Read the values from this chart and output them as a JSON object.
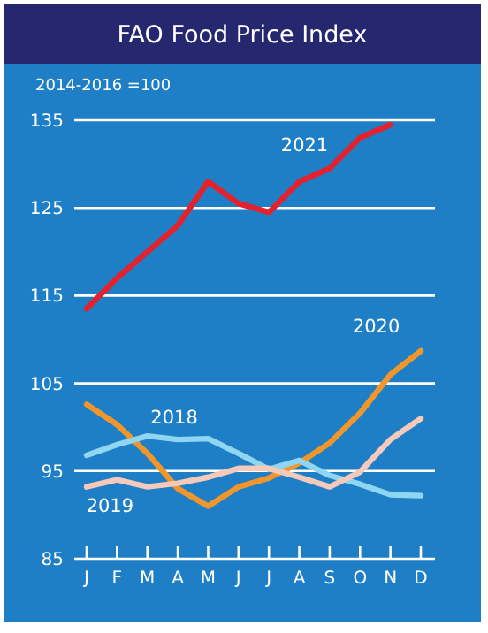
{
  "chart_data": {
    "type": "line",
    "title": "FAO Food Price Index",
    "ylabel": "2014-2016 =100",
    "categories": [
      "J",
      "F",
      "M",
      "A",
      "M",
      "J",
      "J",
      "A",
      "S",
      "O",
      "N",
      "D"
    ],
    "series": [
      {
        "name": "2021",
        "color": "#e3222e",
        "values": [
          113.5,
          117,
          120,
          123,
          128,
          125.5,
          124.5,
          128,
          129.5,
          133,
          134.5,
          null
        ]
      },
      {
        "name": "2020",
        "color": "#f0962a",
        "values": [
          102.6,
          100.3,
          97,
          93,
          91,
          93.2,
          94.2,
          95.9,
          98.2,
          101.6,
          106,
          108.7
        ]
      },
      {
        "name": "2018",
        "color": "#8fd6f2",
        "values": [
          96.8,
          98,
          99,
          98.6,
          98.7,
          97,
          95.2,
          96.2,
          94.5,
          93.5,
          92.3,
          92.2
        ]
      },
      {
        "name": "2019",
        "color": "#f6c9ba",
        "values": [
          93.2,
          94,
          93.2,
          93.6,
          94.3,
          95.3,
          95.3,
          94.3,
          93.2,
          94.9,
          98.6,
          101
        ]
      }
    ],
    "ylim": [
      85,
      135
    ],
    "yticks": [
      85,
      95,
      105,
      115,
      125,
      135
    ],
    "grid": "y",
    "line_style": "solid",
    "marker": "none"
  }
}
